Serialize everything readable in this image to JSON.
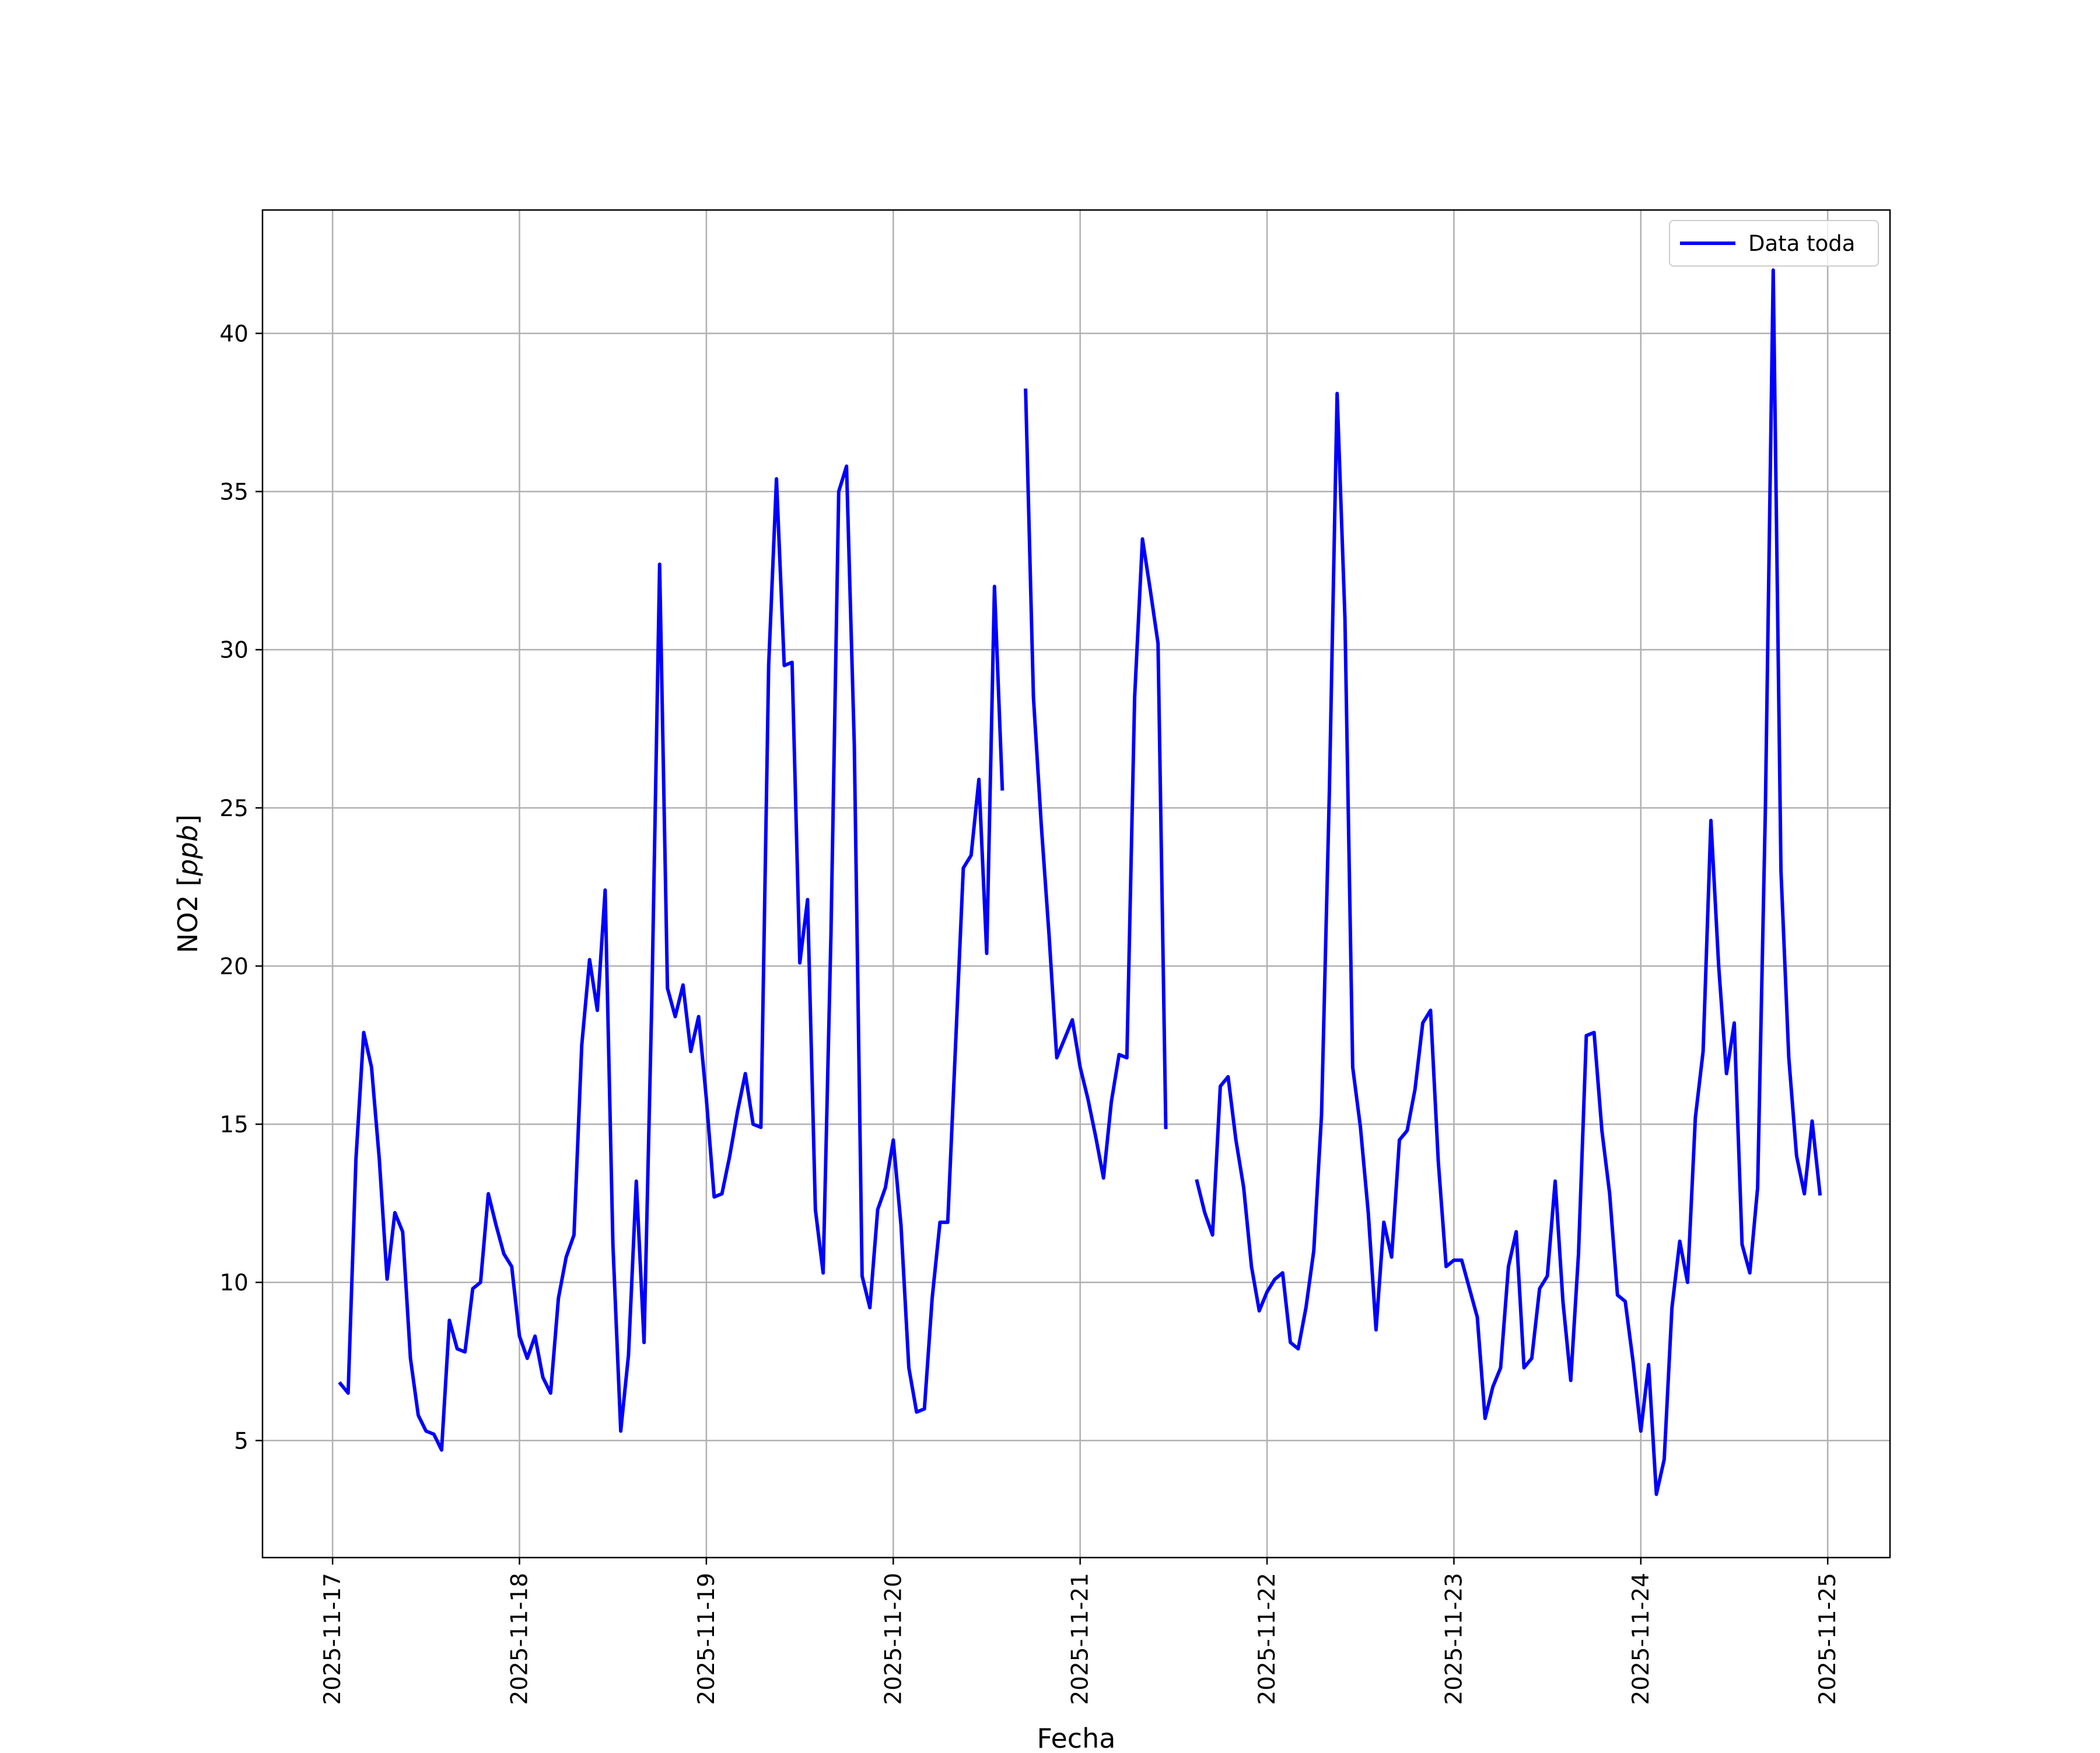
{
  "chart_data": {
    "type": "line",
    "title": "",
    "xlabel": "Fecha",
    "ylabel": "NO2 [ppb]",
    "ylabel_parts": {
      "prefix": "NO2 [",
      "unit": "ppb",
      "suffix": "]"
    },
    "grid": true,
    "legend_position": "top-right",
    "xlim": [
      "2025-11-16T15:00",
      "2025-11-25T08:00"
    ],
    "ylim": [
      1.3,
      43.9
    ],
    "x_ticks": [
      "2025-11-17",
      "2025-11-18",
      "2025-11-19",
      "2025-11-20",
      "2025-11-21",
      "2025-11-22",
      "2025-11-23",
      "2025-11-24",
      "2025-11-25"
    ],
    "y_ticks": [
      5,
      10,
      15,
      20,
      25,
      30,
      35,
      40
    ],
    "series": [
      {
        "name": "Data toda",
        "color": "#0000ff",
        "x_start": "2025-11-17T01:00",
        "x_step_hours": 1,
        "values": [
          6.8,
          6.5,
          13.9,
          17.9,
          16.8,
          13.9,
          10.1,
          12.2,
          11.6,
          7.6,
          5.8,
          5.3,
          5.2,
          4.7,
          8.8,
          7.9,
          7.8,
          9.8,
          10.0,
          12.8,
          11.8,
          10.9,
          10.5,
          8.3,
          7.6,
          8.3,
          7.0,
          6.5,
          9.5,
          10.8,
          11.5,
          17.5,
          20.2,
          18.6,
          22.4,
          11.2,
          5.3,
          7.7,
          13.2,
          8.1,
          19.0,
          32.7,
          19.3,
          18.4,
          19.4,
          17.3,
          18.4,
          15.8,
          12.7,
          12.8,
          14.0,
          15.4,
          16.6,
          15.0,
          14.9,
          29.5,
          35.4,
          29.5,
          29.6,
          20.1,
          22.1,
          12.3,
          10.3,
          21.0,
          35.0,
          35.8,
          27.0,
          10.2,
          9.2,
          12.3,
          13.0,
          14.5,
          11.8,
          7.3,
          5.9,
          6.0,
          9.5,
          11.9,
          11.9,
          17.5,
          23.1,
          23.5,
          25.9,
          20.4,
          32.0,
          25.6,
          null,
          null,
          38.2,
          28.5,
          24.5,
          21.0,
          17.1,
          17.7,
          18.3,
          16.8,
          15.8,
          14.6,
          13.3,
          15.7,
          17.2,
          17.1,
          28.5,
          33.5,
          31.9,
          30.2,
          14.9,
          null,
          null,
          null,
          13.2,
          12.2,
          11.5,
          16.2,
          16.5,
          14.5,
          13.0,
          10.5,
          9.1,
          9.7,
          10.1,
          10.3,
          8.1,
          7.9,
          9.2,
          11.0,
          15.3,
          25.5,
          38.1,
          31.0,
          16.8,
          14.9,
          12.2,
          8.5,
          11.9,
          10.8,
          14.5,
          14.8,
          16.1,
          18.2,
          18.6,
          13.8,
          10.5,
          10.7,
          10.7,
          9.8,
          8.9,
          5.7,
          6.7,
          7.3,
          10.5,
          11.6,
          7.3,
          7.6,
          9.8,
          10.2,
          13.2,
          9.4,
          6.9,
          10.9,
          17.8,
          17.9,
          14.8,
          12.8,
          9.6,
          9.4,
          7.5,
          5.3,
          7.4,
          3.3,
          4.4,
          9.2,
          11.3,
          10.0,
          15.2,
          17.3,
          24.6,
          20.0,
          16.6,
          18.2,
          11.2,
          10.3,
          13.0,
          25.0,
          42.0,
          23.0,
          17.1,
          14.0,
          12.8,
          15.1,
          12.8
        ]
      }
    ]
  }
}
